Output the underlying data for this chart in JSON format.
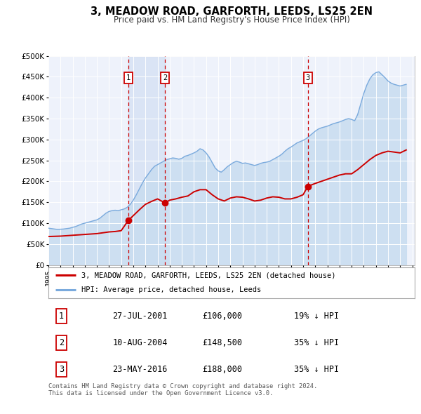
{
  "title": "3, MEADOW ROAD, GARFORTH, LEEDS, LS25 2EN",
  "subtitle": "Price paid vs. HM Land Registry's House Price Index (HPI)",
  "background_color": "#ffffff",
  "plot_bg_color": "#eef2fb",
  "grid_color": "#ffffff",
  "sale_color": "#cc0000",
  "hpi_color": "#7aaadd",
  "hpi_fill_color": "#c8dcf0",
  "ylim": [
    0,
    500000
  ],
  "yticks": [
    0,
    50000,
    100000,
    150000,
    200000,
    250000,
    300000,
    350000,
    400000,
    450000,
    500000
  ],
  "ytick_labels": [
    "£0",
    "£50K",
    "£100K",
    "£150K",
    "£200K",
    "£250K",
    "£300K",
    "£350K",
    "£400K",
    "£450K",
    "£500K"
  ],
  "sale_points": [
    {
      "date_num": 2001.57,
      "price": 106000,
      "label": "1"
    },
    {
      "date_num": 2004.61,
      "price": 148500,
      "label": "2"
    },
    {
      "date_num": 2016.39,
      "price": 188000,
      "label": "3"
    }
  ],
  "vline_dates": [
    2001.57,
    2004.61,
    2016.39
  ],
  "span_start": 2001.57,
  "span_end": 2004.61,
  "legend_sale_label": "3, MEADOW ROAD, GARFORTH, LEEDS, LS25 2EN (detached house)",
  "legend_hpi_label": "HPI: Average price, detached house, Leeds",
  "transactions": [
    {
      "num": "1",
      "date": "27-JUL-2001",
      "price": "£106,000",
      "pct": "19% ↓ HPI"
    },
    {
      "num": "2",
      "date": "10-AUG-2004",
      "price": "£148,500",
      "pct": "35% ↓ HPI"
    },
    {
      "num": "3",
      "date": "23-MAY-2016",
      "price": "£188,000",
      "pct": "35% ↓ HPI"
    }
  ],
  "footer": "Contains HM Land Registry data © Crown copyright and database right 2024.\nThis data is licensed under the Open Government Licence v3.0.",
  "hpi_years": [
    1995.0,
    1995.25,
    1995.5,
    1995.75,
    1996.0,
    1996.25,
    1996.5,
    1996.75,
    1997.0,
    1997.25,
    1997.5,
    1997.75,
    1998.0,
    1998.25,
    1998.5,
    1998.75,
    1999.0,
    1999.25,
    1999.5,
    1999.75,
    2000.0,
    2000.25,
    2000.5,
    2000.75,
    2001.0,
    2001.25,
    2001.5,
    2001.75,
    2002.0,
    2002.25,
    2002.5,
    2002.75,
    2003.0,
    2003.25,
    2003.5,
    2003.75,
    2004.0,
    2004.25,
    2004.5,
    2004.75,
    2005.0,
    2005.25,
    2005.5,
    2005.75,
    2006.0,
    2006.25,
    2006.5,
    2006.75,
    2007.0,
    2007.25,
    2007.5,
    2007.75,
    2008.0,
    2008.25,
    2008.5,
    2008.75,
    2009.0,
    2009.25,
    2009.5,
    2009.75,
    2010.0,
    2010.25,
    2010.5,
    2010.75,
    2011.0,
    2011.25,
    2011.5,
    2011.75,
    2012.0,
    2012.25,
    2012.5,
    2012.75,
    2013.0,
    2013.25,
    2013.5,
    2013.75,
    2014.0,
    2014.25,
    2014.5,
    2014.75,
    2015.0,
    2015.25,
    2015.5,
    2015.75,
    2016.0,
    2016.25,
    2016.5,
    2016.75,
    2017.0,
    2017.25,
    2017.5,
    2017.75,
    2018.0,
    2018.25,
    2018.5,
    2018.75,
    2019.0,
    2019.25,
    2019.5,
    2019.75,
    2020.0,
    2020.25,
    2020.5,
    2020.75,
    2021.0,
    2021.25,
    2021.5,
    2021.75,
    2022.0,
    2022.25,
    2022.5,
    2022.75,
    2023.0,
    2023.25,
    2023.5,
    2023.75,
    2024.0,
    2024.25,
    2024.5
  ],
  "hpi_vals": [
    88000,
    87000,
    86000,
    85000,
    85500,
    86000,
    87000,
    88000,
    90000,
    92000,
    95000,
    98000,
    100000,
    102000,
    104000,
    106000,
    108000,
    112000,
    118000,
    124000,
    128000,
    130000,
    131000,
    130000,
    132000,
    134000,
    138000,
    145000,
    155000,
    168000,
    182000,
    196000,
    208000,
    218000,
    228000,
    236000,
    240000,
    244000,
    248000,
    252000,
    254000,
    256000,
    255000,
    253000,
    255000,
    260000,
    262000,
    265000,
    268000,
    272000,
    278000,
    275000,
    268000,
    258000,
    245000,
    232000,
    225000,
    222000,
    228000,
    235000,
    240000,
    245000,
    248000,
    246000,
    243000,
    244000,
    242000,
    240000,
    238000,
    240000,
    243000,
    245000,
    246000,
    248000,
    252000,
    256000,
    260000,
    265000,
    272000,
    278000,
    282000,
    287000,
    292000,
    295000,
    298000,
    302000,
    308000,
    314000,
    320000,
    325000,
    328000,
    330000,
    332000,
    335000,
    338000,
    340000,
    342000,
    345000,
    348000,
    350000,
    348000,
    345000,
    360000,
    385000,
    410000,
    430000,
    445000,
    455000,
    460000,
    462000,
    455000,
    448000,
    440000,
    435000,
    432000,
    430000,
    428000,
    430000,
    432000
  ],
  "sale_years": [
    1995.0,
    1995.5,
    1996.0,
    1996.5,
    1997.0,
    1997.5,
    1998.0,
    1998.5,
    1999.0,
    1999.5,
    2000.0,
    2000.5,
    2001.0,
    2001.57,
    2002.0,
    2002.5,
    2003.0,
    2003.5,
    2004.0,
    2004.61,
    2005.0,
    2005.5,
    2006.0,
    2006.5,
    2007.0,
    2007.5,
    2008.0,
    2008.5,
    2009.0,
    2009.5,
    2010.0,
    2010.5,
    2011.0,
    2011.5,
    2012.0,
    2012.5,
    2013.0,
    2013.5,
    2014.0,
    2014.5,
    2015.0,
    2015.5,
    2016.0,
    2016.39,
    2017.0,
    2017.5,
    2018.0,
    2018.5,
    2019.0,
    2019.5,
    2020.0,
    2020.5,
    2021.0,
    2021.5,
    2022.0,
    2022.5,
    2023.0,
    2023.5,
    2024.0,
    2024.5
  ],
  "sale_vals": [
    68000,
    68500,
    69000,
    70000,
    71000,
    72000,
    73000,
    74000,
    75000,
    77000,
    79000,
    80000,
    82000,
    106000,
    118000,
    132000,
    145000,
    152000,
    158000,
    148500,
    155000,
    158000,
    162000,
    165000,
    175000,
    180000,
    180000,
    168000,
    158000,
    153000,
    160000,
    163000,
    162000,
    158000,
    153000,
    155000,
    160000,
    163000,
    162000,
    158000,
    158000,
    162000,
    168000,
    188000,
    195000,
    200000,
    205000,
    210000,
    215000,
    218000,
    218000,
    228000,
    240000,
    252000,
    262000,
    268000,
    272000,
    270000,
    268000,
    275000
  ],
  "xmin": 1995.0,
  "xmax": 2025.2,
  "xticks": [
    1995,
    1996,
    1997,
    1998,
    1999,
    2000,
    2001,
    2002,
    2003,
    2004,
    2005,
    2006,
    2007,
    2008,
    2009,
    2010,
    2011,
    2012,
    2013,
    2014,
    2015,
    2016,
    2017,
    2018,
    2019,
    2020,
    2021,
    2022,
    2023,
    2024,
    2025
  ]
}
